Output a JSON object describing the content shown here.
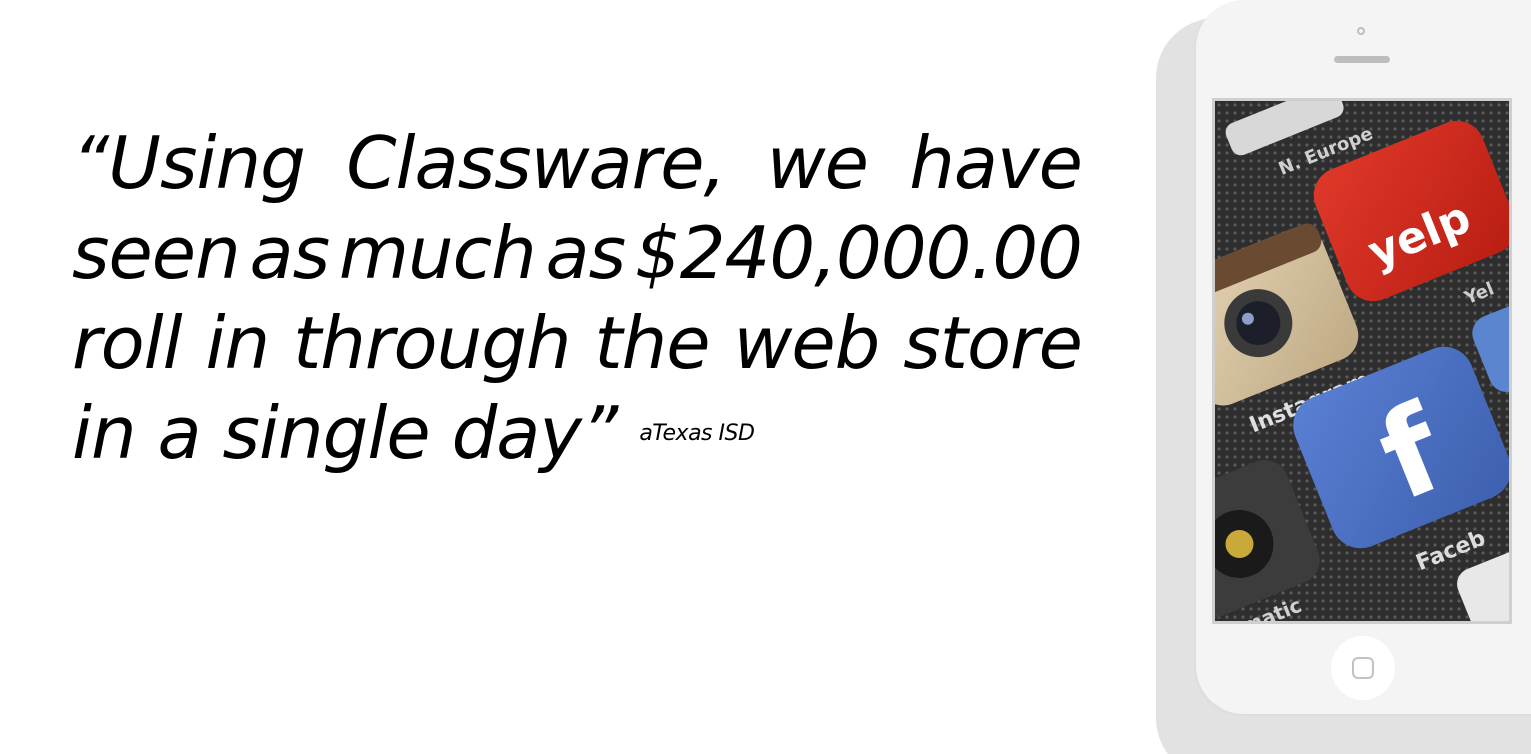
{
  "quote": {
    "lines": [
      [
        "“Using",
        "Classware,",
        "we",
        "have"
      ],
      [
        "seen",
        "as",
        "much",
        "as",
        "$240,000.00"
      ],
      [
        "roll",
        "in",
        "through",
        "the",
        "web",
        "store"
      ],
      [
        "in a single day”"
      ]
    ],
    "attribution": "aTexas ISD"
  },
  "phone": {
    "screen_apps": {
      "top_label": "N. Europe",
      "yelp": "yelp",
      "yelp_partial": "Yel",
      "instagram": "Instagram",
      "facebook": "f",
      "facebook_label": "Faceb",
      "bottom_label": "omatic"
    }
  },
  "colors": {
    "text": "#000000",
    "background": "#ffffff",
    "phone_body": "#f4f4f4",
    "phone_shadow": "#e2e2e2",
    "yelp_red": "#d42a1c",
    "facebook_blue": "#4a6fc2",
    "instagram_tan": "#d9c7a6"
  }
}
